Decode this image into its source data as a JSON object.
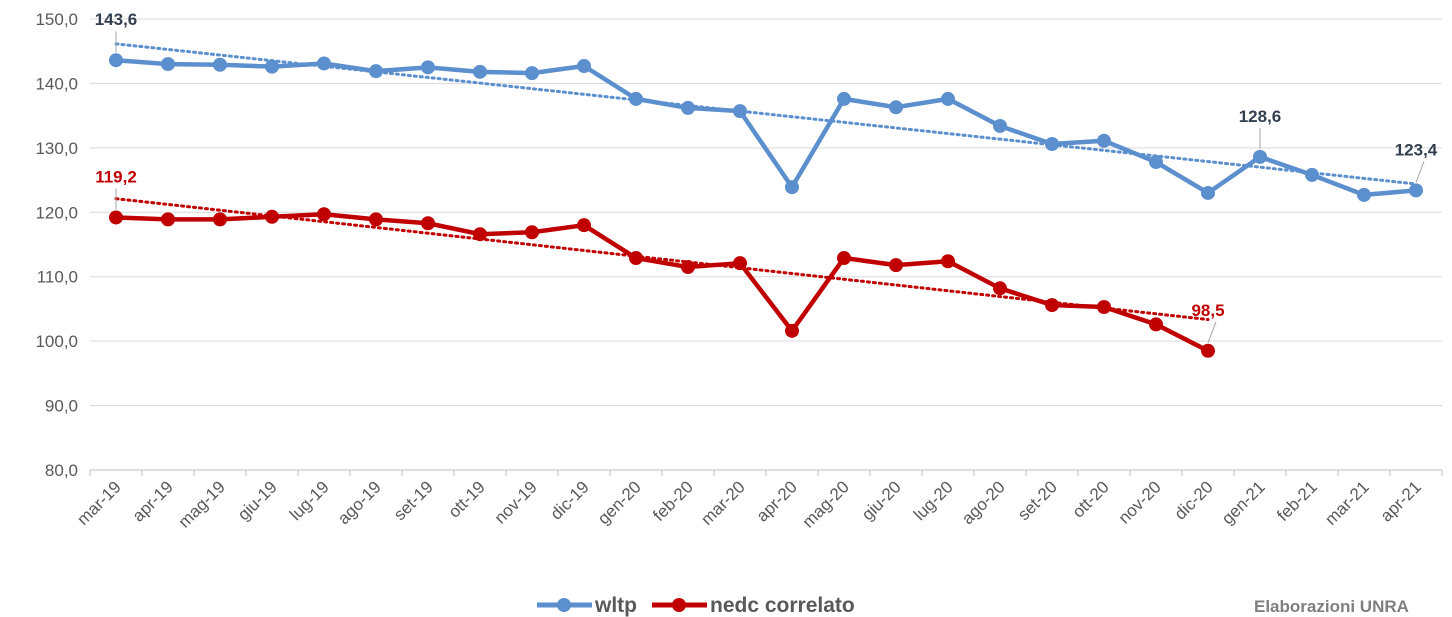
{
  "chart_data": {
    "type": "line",
    "categories": [
      "mar-19",
      "apr-19",
      "mag-19",
      "giu-19",
      "lug-19",
      "ago-19",
      "set-19",
      "ott-19",
      "nov-19",
      "dic-19",
      "gen-20",
      "feb-20",
      "mar-20",
      "apr-20",
      "mag-20",
      "giu-20",
      "lug-20",
      "ago-20",
      "set-20",
      "ott-20",
      "nov-20",
      "dic-20",
      "gen-21",
      "feb-21",
      "mar-21",
      "apr-21"
    ],
    "series": [
      {
        "name": "wltp",
        "color": "#5b8fce",
        "label_color": "#333f50",
        "values": [
          143.6,
          143.0,
          142.9,
          142.6,
          143.1,
          141.9,
          142.5,
          141.8,
          141.6,
          142.7,
          137.6,
          136.2,
          135.7,
          123.9,
          137.6,
          136.3,
          137.6,
          133.4,
          130.6,
          131.1,
          127.8,
          123.0,
          128.6,
          125.8,
          122.7,
          123.4
        ],
        "value_labels": [
          "143,6",
          null,
          null,
          null,
          null,
          null,
          null,
          null,
          null,
          null,
          null,
          null,
          null,
          null,
          null,
          null,
          null,
          null,
          null,
          null,
          null,
          null,
          "128,6",
          null,
          null,
          "123,4"
        ]
      },
      {
        "name": "nedc correlato",
        "color": "#c00000",
        "label_color": "#c00000",
        "values": [
          119.2,
          118.9,
          118.9,
          119.3,
          119.7,
          118.9,
          118.3,
          116.6,
          116.9,
          118.0,
          112.9,
          111.5,
          112.1,
          101.6,
          112.9,
          111.8,
          112.4,
          108.2,
          105.6,
          105.3,
          102.6,
          98.5,
          null,
          null,
          null,
          null
        ],
        "value_labels": [
          "119,2",
          null,
          null,
          null,
          null,
          null,
          null,
          null,
          null,
          null,
          null,
          null,
          null,
          null,
          null,
          null,
          null,
          null,
          null,
          null,
          null,
          "98,5",
          null,
          null,
          null,
          null
        ]
      }
    ],
    "ylim": [
      80,
      150
    ],
    "yticks": [
      {
        "value": 80,
        "label": "80,0"
      },
      {
        "value": 90,
        "label": "90,0"
      },
      {
        "value": 100,
        "label": "100,0"
      },
      {
        "value": 110,
        "label": "110,0"
      },
      {
        "value": 120,
        "label": "120,0"
      },
      {
        "value": 130,
        "label": "130,0"
      },
      {
        "value": 140,
        "label": "140,0"
      },
      {
        "value": 150,
        "label": "150,0"
      }
    ],
    "grid": true,
    "trendline": true,
    "legend": "bottom",
    "source": "Elaborazioni UNRA"
  }
}
